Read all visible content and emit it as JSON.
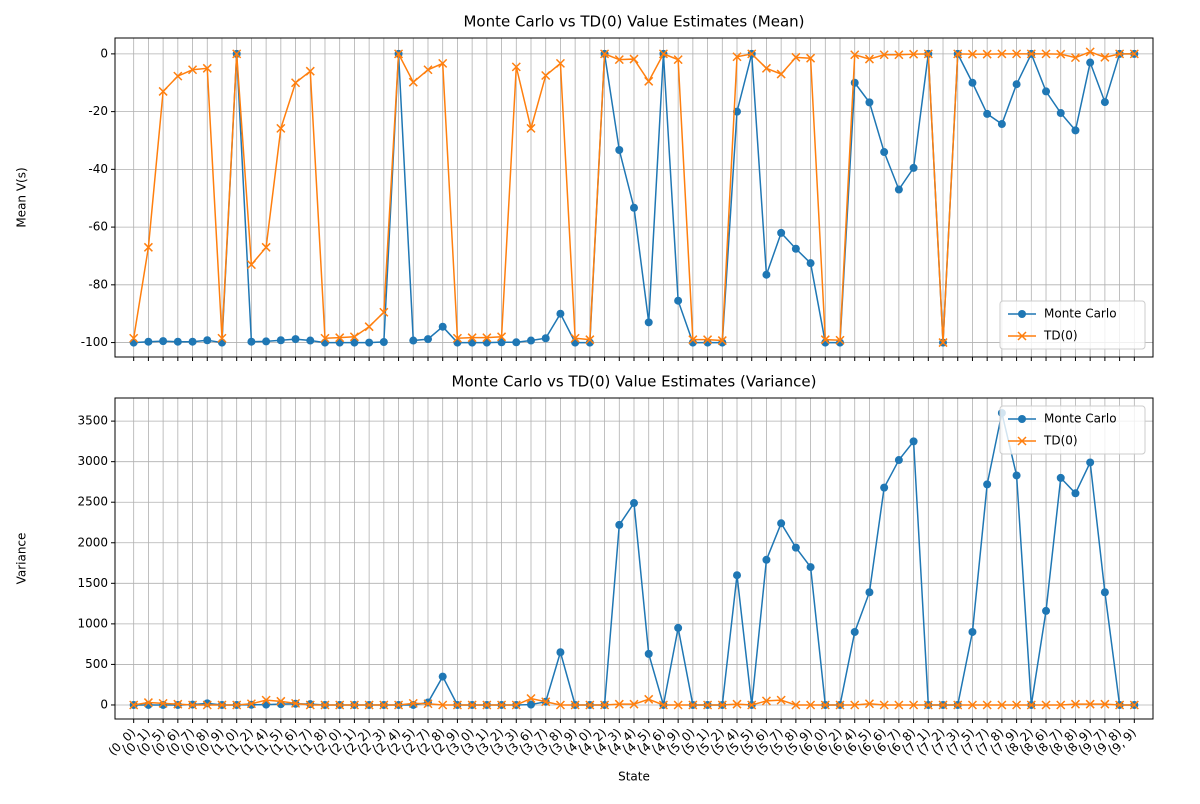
{
  "chart_data": [
    {
      "type": "line",
      "title": "Monte Carlo vs TD(0) Value Estimates (Mean)",
      "ylabel": "Mean V(s)",
      "ylim": [
        -105,
        5.5
      ],
      "yticks": [
        -100,
        -80,
        -60,
        -40,
        -20,
        0
      ],
      "grid": true,
      "legend": "lower right",
      "series": [
        {
          "name": "Monte Carlo",
          "color": "#1f77b4",
          "marker": "o",
          "values": [
            -100,
            -99.7,
            -99.5,
            -99.7,
            -99.7,
            -99.2,
            -100,
            0,
            -99.7,
            -99.6,
            -99.2,
            -98.8,
            -99.3,
            -100,
            -100,
            -100,
            -100,
            -99.8,
            0,
            -99.3,
            -98.8,
            -94.5,
            -100,
            -100,
            -100,
            -99.9,
            -99.9,
            -99.3,
            -98.5,
            -90,
            -100,
            -100,
            0,
            -33.3,
            -53.3,
            -93,
            0,
            -85.5,
            -100,
            -100,
            -100,
            -20,
            0,
            -76.5,
            -62,
            -67.5,
            -72.5,
            -100,
            -100,
            -10,
            -16.8,
            -34,
            -47,
            -39.5,
            0,
            -100,
            0,
            -10,
            -20.8,
            -24.3,
            -10.5,
            0,
            -13,
            -20.5,
            -26.5,
            -3,
            -16.7,
            0,
            0
          ]
        },
        {
          "name": "TD(0)",
          "color": "#ff7f0e",
          "marker": "x",
          "values": [
            -98.5,
            -67,
            -13,
            -7.7,
            -5.5,
            -5,
            -98.5,
            0,
            -73,
            -67,
            -25.8,
            -10,
            -6,
            -98.5,
            -98.3,
            -98,
            -94.5,
            -89.5,
            0,
            -9.8,
            -5.5,
            -3.3,
            -98.5,
            -98.3,
            -98.3,
            -98,
            -4.5,
            -25.8,
            -7.5,
            -3.3,
            -98.5,
            -99,
            0,
            -2,
            -1.8,
            -9.5,
            0,
            -2,
            -99,
            -99,
            -99.3,
            -1,
            0,
            -5,
            -7,
            -1.2,
            -1.5,
            -99,
            -99.2,
            -0.3,
            -1.8,
            -0.3,
            -0.3,
            -0.1,
            0,
            -100,
            0,
            -0.1,
            -0.1,
            0,
            0,
            0,
            0,
            -0.1,
            -1.3,
            0.7,
            -1.2,
            0,
            0
          ]
        }
      ]
    },
    {
      "type": "line",
      "title": "Monte Carlo vs TD(0) Value Estimates (Variance)",
      "ylabel": "Variance",
      "xlabel": "State",
      "categories": [
        "(0, 0)",
        "(0, 1)",
        "(0, 5)",
        "(0, 6)",
        "(0, 7)",
        "(0, 8)",
        "(0, 9)",
        "(1, 0)",
        "(1, 2)",
        "(1, 4)",
        "(1, 5)",
        "(1, 6)",
        "(1, 7)",
        "(1, 8)",
        "(2, 0)",
        "(2, 1)",
        "(2, 2)",
        "(2, 3)",
        "(2, 4)",
        "(2, 5)",
        "(2, 7)",
        "(2, 8)",
        "(2, 9)",
        "(3, 0)",
        "(3, 1)",
        "(3, 2)",
        "(3, 3)",
        "(3, 6)",
        "(3, 7)",
        "(3, 8)",
        "(3, 9)",
        "(4, 0)",
        "(4, 2)",
        "(4, 3)",
        "(4, 4)",
        "(4, 5)",
        "(4, 6)",
        "(4, 9)",
        "(5, 0)",
        "(5, 1)",
        "(5, 2)",
        "(5, 4)",
        "(5, 5)",
        "(5, 6)",
        "(5, 7)",
        "(5, 8)",
        "(5, 9)",
        "(6, 0)",
        "(6, 2)",
        "(6, 4)",
        "(6, 5)",
        "(6, 6)",
        "(6, 7)",
        "(6, 8)",
        "(7, 1)",
        "(7, 2)",
        "(7, 3)",
        "(7, 5)",
        "(7, 7)",
        "(7, 8)",
        "(7, 9)",
        "(8, 2)",
        "(8, 6)",
        "(8, 7)",
        "(8, 8)",
        "(8, 9)",
        "(9, 7)",
        "(9, 8)",
        "(9, 9)"
      ],
      "ylim": [
        -173,
        3785
      ],
      "yticks": [
        0,
        500,
        1000,
        1500,
        2000,
        2500,
        3000,
        3500
      ],
      "grid": true,
      "legend": "upper right",
      "series": [
        {
          "name": "Monte Carlo",
          "color": "#1f77b4",
          "marker": "o",
          "values": [
            0,
            0,
            0,
            0,
            5,
            20,
            0,
            0,
            2,
            5,
            10,
            15,
            10,
            0,
            0,
            0,
            0,
            0,
            0,
            0,
            30,
            350,
            0,
            0,
            0,
            0,
            0,
            5,
            40,
            650,
            0,
            0,
            0,
            2220,
            2490,
            630,
            0,
            950,
            0,
            0,
            0,
            1600,
            0,
            1790,
            2240,
            1940,
            1700,
            0,
            0,
            900,
            1390,
            2680,
            3020,
            3250,
            0,
            0,
            0,
            900,
            2720,
            3600,
            2830,
            0,
            1160,
            2800,
            2610,
            2990,
            1390,
            0,
            0
          ]
        },
        {
          "name": "TD(0)",
          "color": "#ff7f0e",
          "marker": "x",
          "values": [
            0,
            30,
            20,
            10,
            0,
            0,
            0,
            0,
            15,
            60,
            45,
            20,
            0,
            0,
            0,
            0,
            0,
            0,
            0,
            20,
            15,
            0,
            0,
            0,
            0,
            0,
            0,
            80,
            40,
            0,
            0,
            0,
            0,
            10,
            10,
            70,
            0,
            0,
            0,
            0,
            0,
            10,
            0,
            50,
            60,
            0,
            0,
            0,
            0,
            0,
            15,
            0,
            0,
            0,
            0,
            0,
            0,
            0,
            0,
            0,
            0,
            0,
            0,
            0,
            10,
            10,
            10,
            0,
            0
          ]
        }
      ]
    }
  ]
}
